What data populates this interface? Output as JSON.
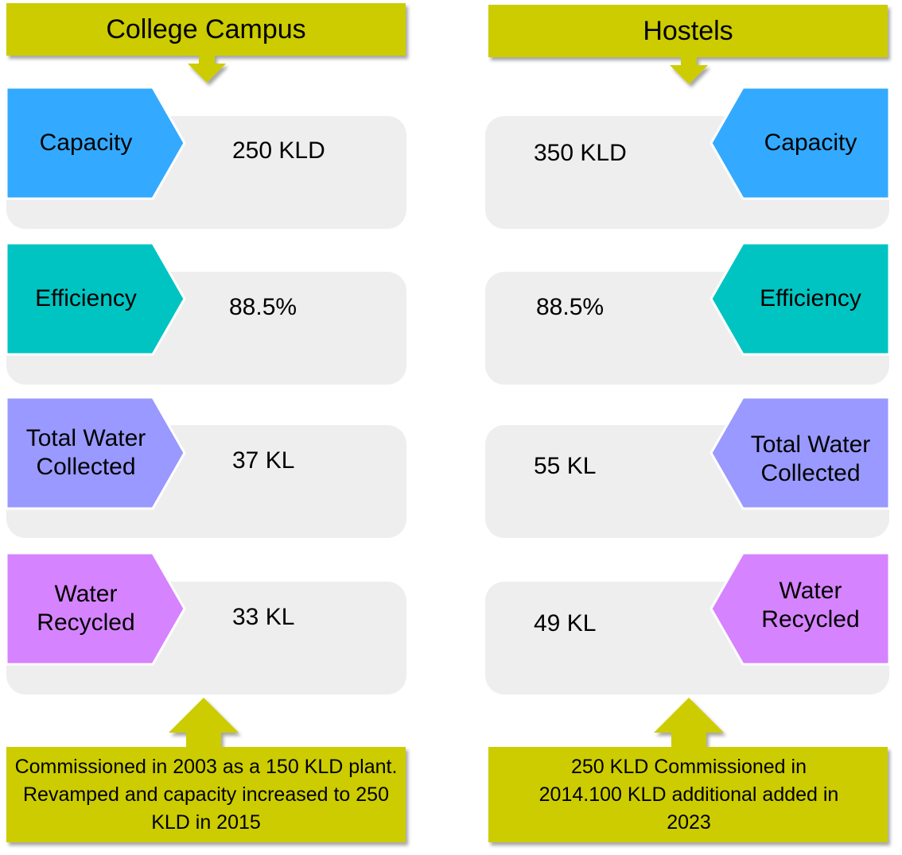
{
  "colors": {
    "olive": "#cccc00",
    "blue": "#33aaff",
    "teal": "#00c4c2",
    "periwinkle": "#9999ff",
    "violet": "#d683ff",
    "panel": "#eeeeee"
  },
  "left": {
    "title": "College Campus",
    "rows": [
      {
        "label": "Capacity",
        "value": "250 KLD"
      },
      {
        "label": "Efficiency",
        "value": "88.5%"
      },
      {
        "label": "Total Water\nCollected",
        "value": "37 KL"
      },
      {
        "label": "Water\nRecycled",
        "value": "33 KL"
      }
    ],
    "note": "Commissioned in 2003 as a 150 KLD plant. Revamped and capacity increased to 250 KLD in 2015"
  },
  "right": {
    "title": "Hostels",
    "rows": [
      {
        "label": "Capacity",
        "value": "350 KLD"
      },
      {
        "label": "Efficiency",
        "value": "88.5%"
      },
      {
        "label": "Total Water\nCollected",
        "value": "55 KL"
      },
      {
        "label": "Water\nRecycled",
        "value": "49 KL"
      }
    ],
    "note": "250 KLD Commissioned in 2014.100 KLD additional added in 2023"
  }
}
